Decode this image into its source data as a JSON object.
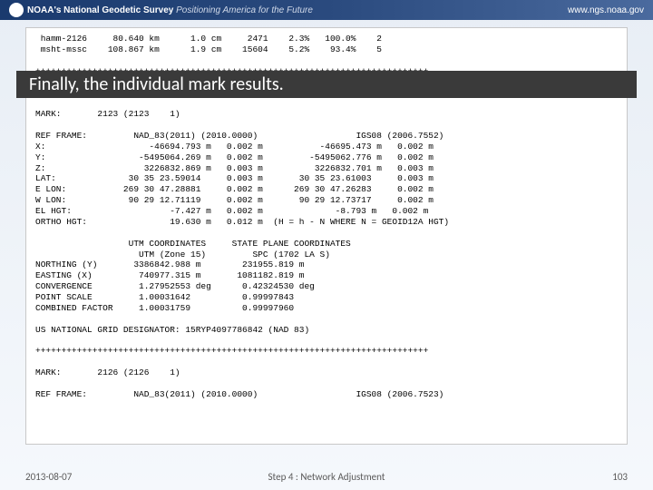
{
  "header": {
    "org": "NOAA's",
    "dept": "National Geodetic Survey",
    "tagline": "Positioning America for the Future",
    "url": "www.ngs.noaa.gov"
  },
  "callout": "Finally, the individual mark results.",
  "top_table": " hamm-2126     80.640 km      1.0 cm     2471    2.3%   100.0%    2\n msht-mssc    108.867 km      1.9 cm    15604    5.2%    93.4%    5",
  "divider": "++++++++++++++++++++++++++++++++++++++++++++++++++++++++++++++++++++++++++++",
  "mark1_header": "MARK:       2123 (2123    1)",
  "mark1_body": "REF FRAME:         NAD_83(2011) (2010.0000)                   IGS08 (2006.7552)\nX:                    -46694.793 m   0.002 m           -46695.473 m   0.002 m\nY:                  -5495064.269 m   0.002 m         -5495062.776 m   0.002 m\nZ:                   3226832.869 m   0.003 m          3226832.701 m   0.003 m\nLAT:              30 35 23.59014     0.003 m       30 35 23.61003     0.003 m\nE LON:           269 30 47.28881     0.002 m      269 30 47.26283     0.002 m\nW LON:            90 29 12.71119     0.002 m       90 29 12.73717     0.002 m\nEL HGT:                   -7.427 m   0.002 m              -8.793 m   0.002 m\nORTHO HGT:                19.630 m   0.012 m  (H = h - N WHERE N = GEOID12A HGT)",
  "mark1_coords": "                  UTM COORDINATES     STATE PLANE COORDINATES\n                    UTM (Zone 15)         SPC (1702 LA S)\nNORTHING (Y)       3386842.988 m        231955.819 m\nEASTING (X)         740977.315 m       1081182.819 m\nCONVERGENCE         1.27952553 deg      0.42324530 deg\nPOINT SCALE         1.00031642          0.99997843\nCOMBINED FACTOR     1.00031759          0.99997960",
  "usng": "US NATIONAL GRID DESIGNATOR: 15RYP4097786842 (NAD 83)",
  "mark2_header": "MARK:       2126 (2126    1)",
  "mark2_ref": "REF FRAME:         NAD_83(2011) (2010.0000)                   IGS08 (2006.7523)",
  "footer": {
    "date": "2013-08-07",
    "step": "Step 4 : Network Adjustment",
    "page": "103"
  }
}
